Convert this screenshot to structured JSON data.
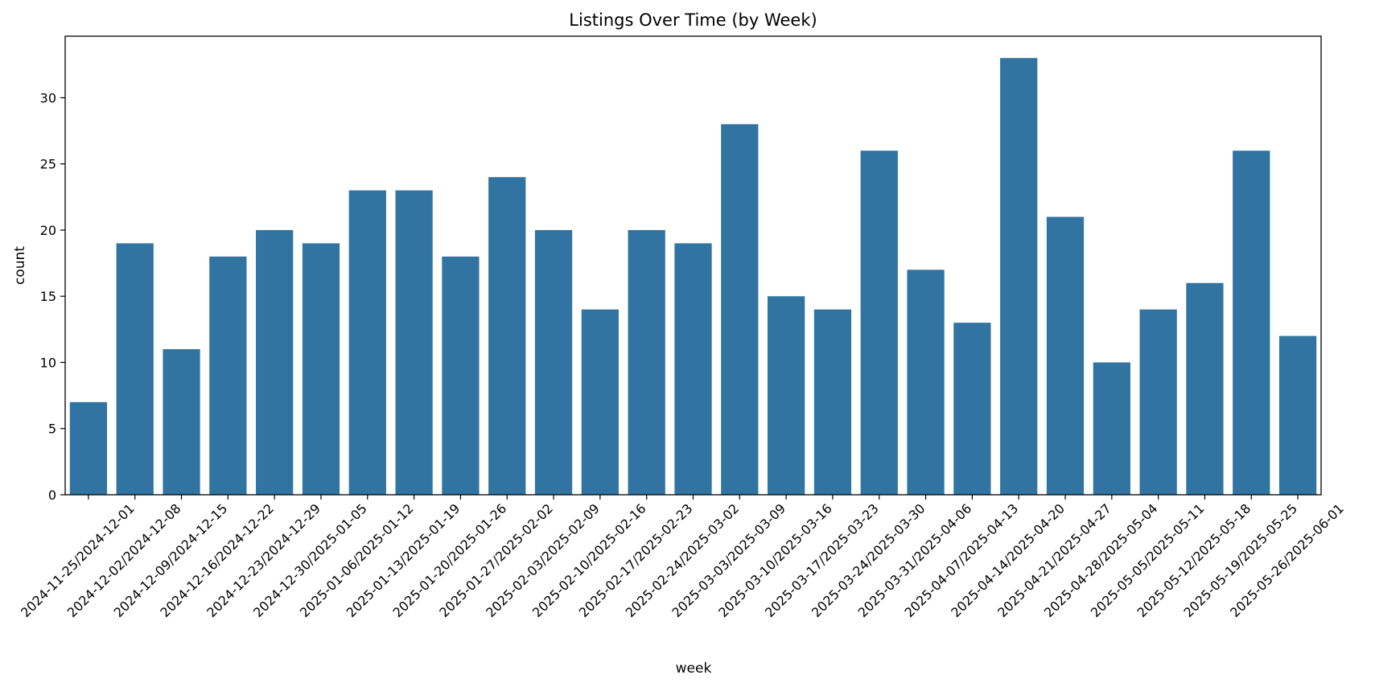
{
  "chart_data": {
    "type": "bar",
    "title": "Listings Over Time (by Week)",
    "xlabel": "week",
    "ylabel": "count",
    "ylim": [
      0,
      34.65
    ],
    "yticks": [
      0,
      5,
      10,
      15,
      20,
      25,
      30
    ],
    "grid": false,
    "bar_color": "#3274a1",
    "categories": [
      "2024-11-25/2024-12-01",
      "2024-12-02/2024-12-08",
      "2024-12-09/2024-12-15",
      "2024-12-16/2024-12-22",
      "2024-12-23/2024-12-29",
      "2024-12-30/2025-01-05",
      "2025-01-06/2025-01-12",
      "2025-01-13/2025-01-19",
      "2025-01-20/2025-01-26",
      "2025-01-27/2025-02-02",
      "2025-02-03/2025-02-09",
      "2025-02-10/2025-02-16",
      "2025-02-17/2025-02-23",
      "2025-02-24/2025-03-02",
      "2025-03-03/2025-03-09",
      "2025-03-10/2025-03-16",
      "2025-03-17/2025-03-23",
      "2025-03-24/2025-03-30",
      "2025-03-31/2025-04-06",
      "2025-04-07/2025-04-13",
      "2025-04-14/2025-04-20",
      "2025-04-21/2025-04-27",
      "2025-04-28/2025-05-04",
      "2025-05-05/2025-05-11",
      "2025-05-12/2025-05-18",
      "2025-05-19/2025-05-25",
      "2025-05-26/2025-06-01"
    ],
    "values": [
      7,
      19,
      11,
      18,
      20,
      19,
      23,
      23,
      18,
      24,
      20,
      14,
      20,
      19,
      28,
      15,
      14,
      26,
      17,
      13,
      33,
      21,
      10,
      14,
      16,
      26,
      12
    ]
  }
}
